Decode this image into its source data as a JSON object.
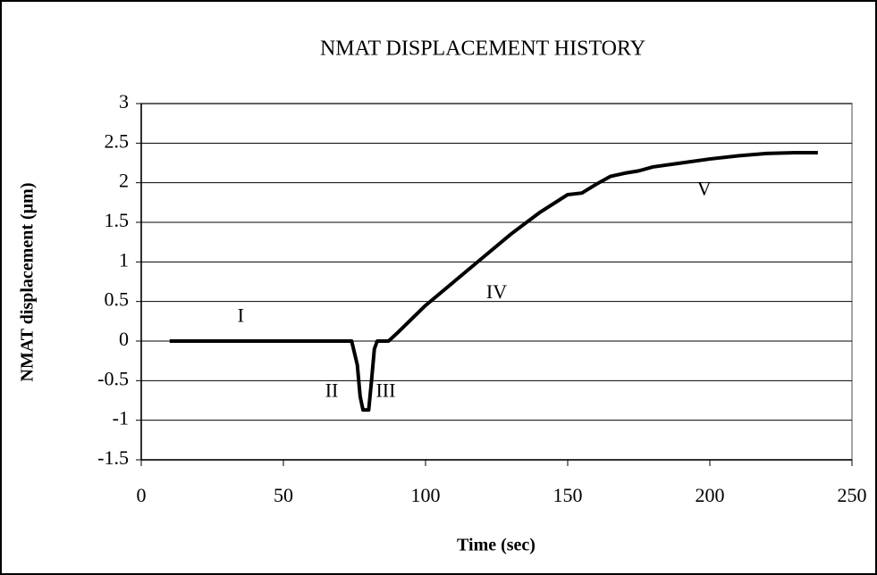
{
  "chart_data": {
    "type": "line",
    "title": "NMAT DISPLACEMENT HISTORY",
    "x_label": "Time (sec)",
    "y_label": "NMAT displacement (µm)",
    "x": [
      10,
      20,
      30,
      40,
      50,
      60,
      70,
      74,
      76,
      77,
      78,
      80,
      81,
      82,
      83,
      87,
      90,
      100,
      110,
      120,
      130,
      140,
      150,
      155,
      160,
      165,
      170,
      175,
      180,
      190,
      200,
      210,
      220,
      230,
      238
    ],
    "series": [
      {
        "name": "NMAT displacement",
        "color": "#000000",
        "values": [
          0,
          0,
          0,
          0,
          0,
          0,
          0,
          0,
          -0.3,
          -0.7,
          -0.87,
          -0.87,
          -0.5,
          -0.1,
          0,
          0,
          0.1,
          0.45,
          0.75,
          1.05,
          1.35,
          1.62,
          1.85,
          1.87,
          1.98,
          2.08,
          2.12,
          2.15,
          2.2,
          2.25,
          2.3,
          2.34,
          2.37,
          2.38,
          2.38
        ]
      }
    ],
    "xlim": [
      0,
      250
    ],
    "xticks": [
      0,
      50,
      100,
      150,
      200,
      250
    ],
    "ylim": [
      -1.5,
      3
    ],
    "yticks": [
      -1.5,
      -1,
      -0.5,
      0,
      0.5,
      1,
      1.5,
      2,
      2.5,
      3
    ],
    "grid": true,
    "annotations": [
      {
        "text": "I",
        "x": 35,
        "y": 0.3
      },
      {
        "text": "II",
        "x": 67,
        "y": -0.65
      },
      {
        "text": "III",
        "x": 86,
        "y": -0.65
      },
      {
        "text": "IV",
        "x": 125,
        "y": 0.6
      },
      {
        "text": "V",
        "x": 198,
        "y": 1.9
      }
    ]
  }
}
